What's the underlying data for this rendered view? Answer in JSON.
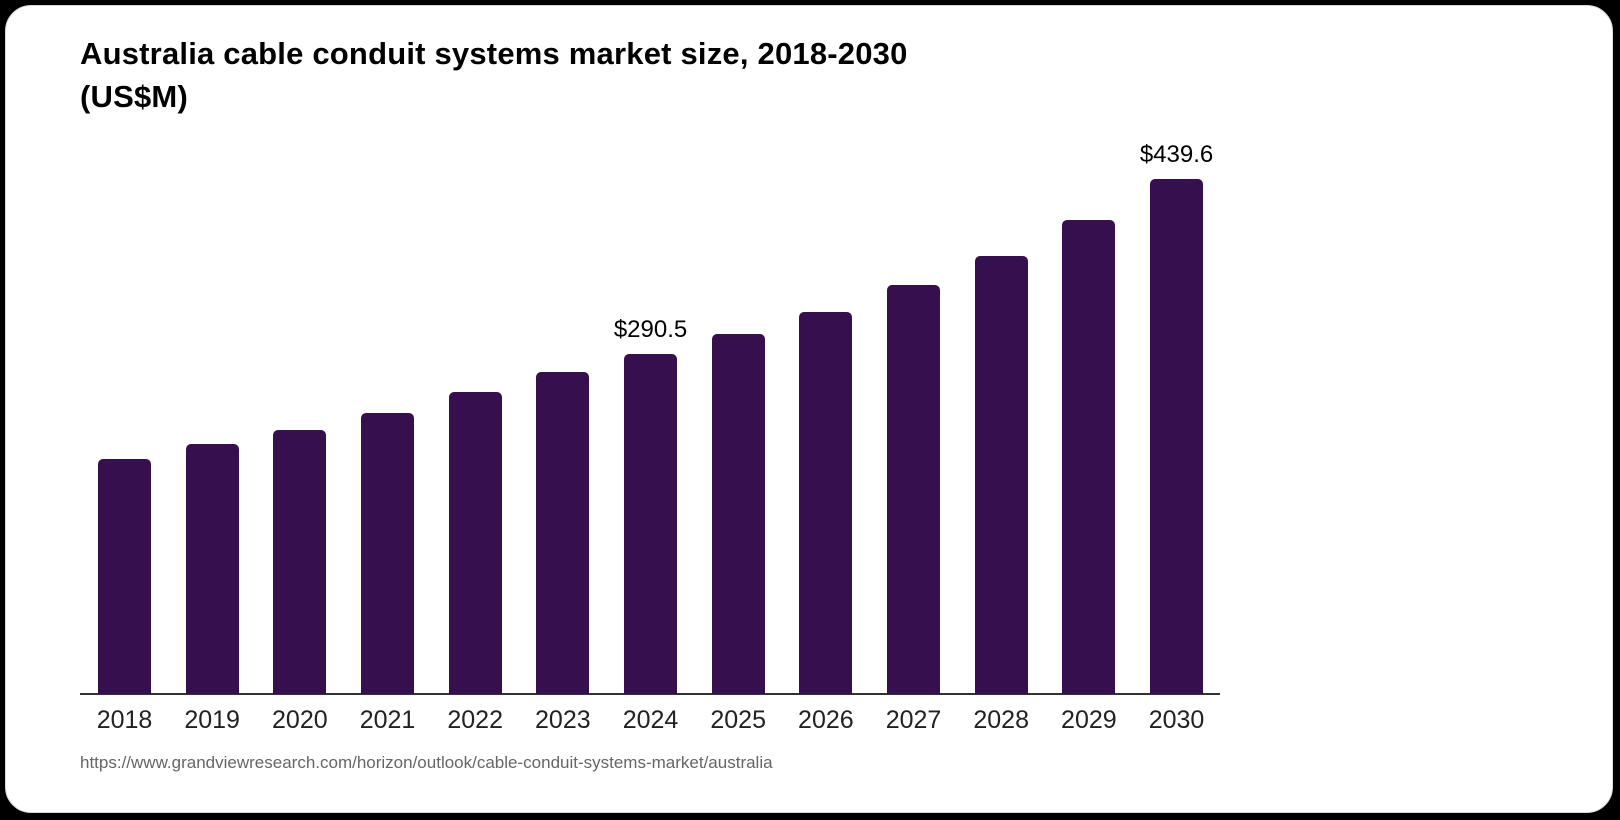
{
  "title_line1": "Australia cable conduit systems market size, 2018-2030",
  "title_line2": "(US$M)",
  "source_url": "https://www.grandviewresearch.com/horizon/outlook/cable-conduit-systems-market/australia",
  "colors": {
    "bar": "#36104E",
    "axis": "#333333",
    "tick_label": "#222222",
    "data_label": "#000000",
    "source_text": "#666666",
    "card_background": "#ffffff",
    "page_background": "#000000"
  },
  "chart_data": {
    "type": "bar",
    "title": "Australia cable conduit systems market size, 2018-2030 (US$M)",
    "unit": "US$M",
    "categories": [
      "2018",
      "2019",
      "2020",
      "2021",
      "2022",
      "2023",
      "2024",
      "2025",
      "2026",
      "2027",
      "2028",
      "2029",
      "2030"
    ],
    "values": [
      200.4,
      213.2,
      225.1,
      239.6,
      257.5,
      274.6,
      290.5,
      307.0,
      325.7,
      348.8,
      373.5,
      404.2,
      439.6
    ],
    "labeled_points": [
      {
        "category": "2024",
        "label": "$290.5"
      },
      {
        "category": "2030",
        "label": "$439.6"
      }
    ],
    "xlabel": "",
    "ylabel": "",
    "ylim": [
      0,
      460
    ],
    "grid": false,
    "legend": "none"
  }
}
